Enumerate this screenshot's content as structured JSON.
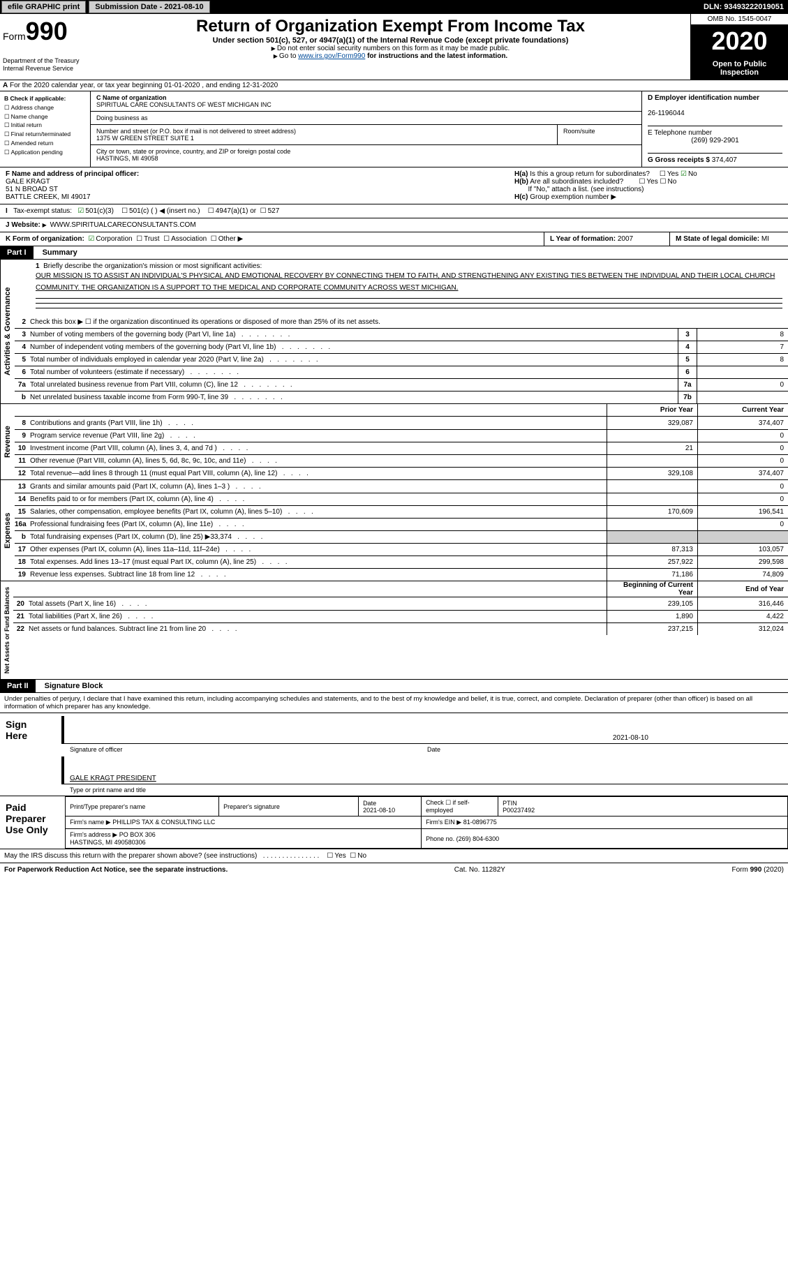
{
  "top": {
    "efile": "efile GRAPHIC print",
    "sub_label": "Submission Date - 2021-08-10",
    "dln": "DLN: 93493222019051"
  },
  "header": {
    "form_prefix": "Form",
    "form_num": "990",
    "title": "Return of Organization Exempt From Income Tax",
    "subtitle": "Under section 501(c), 527, or 4947(a)(1) of the Internal Revenue Code (except private foundations)",
    "note1": "Do not enter social security numbers on this form as it may be made public.",
    "note2_pre": "Go to ",
    "note2_link": "www.irs.gov/Form990",
    "note2_post": " for instructions and the latest information.",
    "dept": "Department of the Treasury\nInternal Revenue Service",
    "omb": "OMB No. 1545-0047",
    "year": "2020",
    "open": "Open to Public Inspection"
  },
  "period": {
    "text": "For the 2020 calendar year, or tax year beginning 01-01-2020   , and ending 12-31-2020",
    "a": "A"
  },
  "checkB": {
    "title": "B Check if applicable:",
    "items": [
      "Address change",
      "Name change",
      "Initial return",
      "Final return/terminated",
      "Amended return",
      "Application pending"
    ]
  },
  "boxC": {
    "label": "C Name of organization",
    "name": "SPIRITUAL CARE CONSULTANTS OF WEST MICHIGAN INC",
    "dba_label": "Doing business as",
    "addr_label": "Number and street (or P.O. box if mail is not delivered to street address)",
    "addr": "1375 W GREEN STREET SUITE 1",
    "room_label": "Room/suite",
    "city_label": "City or town, state or province, country, and ZIP or foreign postal code",
    "city": "HASTINGS, MI  49058"
  },
  "boxD": {
    "label": "D Employer identification number",
    "val": "26-1196044"
  },
  "boxE": {
    "label": "E Telephone number",
    "val": "(269) 929-2901"
  },
  "boxG": {
    "label": "G Gross receipts $",
    "val": "374,407"
  },
  "boxF": {
    "label": "F Name and address of principal officer:",
    "name": "GALE KRAGT",
    "addr1": "51 N BROAD ST",
    "addr2": "BATTLE CREEK, MI  49017"
  },
  "boxH": {
    "a": "Is this a group return for subordinates?",
    "a_yes": "Yes",
    "a_no": "No",
    "b": "Are all subordinates included?",
    "b_note": "If \"No,\" attach a list. (see instructions)",
    "c": "Group exemption number"
  },
  "boxI": {
    "label": "Tax-exempt status:",
    "o1": "501(c)(3)",
    "o2": "501(c) (   ) ◀ (insert no.)",
    "o3": "4947(a)(1) or",
    "o4": "527"
  },
  "boxJ": {
    "label": "J    Website:",
    "val": "WWW.SPIRITUALCARECONSULTANTS.COM"
  },
  "boxK": {
    "label": "K Form of organization:",
    "o1": "Corporation",
    "o2": "Trust",
    "o3": "Association",
    "o4": "Other"
  },
  "boxL": {
    "label": "L Year of formation:",
    "val": "2007"
  },
  "boxM": {
    "label": "M State of legal domicile:",
    "val": "MI"
  },
  "part1": {
    "label": "Part I",
    "title": "Summary",
    "q1": "Briefly describe the organization's mission or most significant activities:",
    "mission": "OUR MISSION IS TO ASSIST AN INDIVIDUAL'S PHYSICAL AND EMOTIONAL RECOVERY BY CONNECTING THEM TO FAITH, AND STRENGTHENING ANY EXISTING TIES BETWEEN THE INDIVIDUAL AND THEIR LOCAL CHURCH COMMUNITY. THE ORGANIZATION IS A SUPPORT TO THE MEDICAL AND CORPORATE COMMUNITY ACROSS WEST MICHIGAN.",
    "q2": "Check this box ▶ ☐  if the organization discontinued its operations or disposed of more than 25% of its net assets.",
    "lines_gov": [
      {
        "n": "3",
        "t": "Number of voting members of the governing body (Part VI, line 1a)",
        "ln": "3",
        "v": "8"
      },
      {
        "n": "4",
        "t": "Number of independent voting members of the governing body (Part VI, line 1b)",
        "ln": "4",
        "v": "7"
      },
      {
        "n": "5",
        "t": "Total number of individuals employed in calendar year 2020 (Part V, line 2a)",
        "ln": "5",
        "v": "8"
      },
      {
        "n": "6",
        "t": "Total number of volunteers (estimate if necessary)",
        "ln": "6",
        "v": ""
      },
      {
        "n": "7a",
        "t": "Total unrelated business revenue from Part VIII, column (C), line 12",
        "ln": "7a",
        "v": "0"
      },
      {
        "n": "b",
        "t": "Net unrelated business taxable income from Form 990-T, line 39",
        "ln": "7b",
        "v": ""
      }
    ],
    "py": "Prior Year",
    "cy": "Current Year",
    "rev": [
      {
        "n": "8",
        "t": "Contributions and grants (Part VIII, line 1h)",
        "p": "329,087",
        "c": "374,407"
      },
      {
        "n": "9",
        "t": "Program service revenue (Part VIII, line 2g)",
        "p": "",
        "c": "0"
      },
      {
        "n": "10",
        "t": "Investment income (Part VIII, column (A), lines 3, 4, and 7d )",
        "p": "21",
        "c": "0"
      },
      {
        "n": "11",
        "t": "Other revenue (Part VIII, column (A), lines 5, 6d, 8c, 9c, 10c, and 11e)",
        "p": "",
        "c": "0"
      },
      {
        "n": "12",
        "t": "Total revenue—add lines 8 through 11 (must equal Part VIII, column (A), line 12)",
        "p": "329,108",
        "c": "374,407"
      }
    ],
    "exp": [
      {
        "n": "13",
        "t": "Grants and similar amounts paid (Part IX, column (A), lines 1–3 )",
        "p": "",
        "c": "0"
      },
      {
        "n": "14",
        "t": "Benefits paid to or for members (Part IX, column (A), line 4)",
        "p": "",
        "c": "0"
      },
      {
        "n": "15",
        "t": "Salaries, other compensation, employee benefits (Part IX, column (A), lines 5–10)",
        "p": "170,609",
        "c": "196,541"
      },
      {
        "n": "16a",
        "t": "Professional fundraising fees (Part IX, column (A), line 11e)",
        "p": "",
        "c": "0"
      },
      {
        "n": "b",
        "t": "Total fundraising expenses (Part IX, column (D), line 25) ▶33,374",
        "p": "GREY",
        "c": "GREY"
      },
      {
        "n": "17",
        "t": "Other expenses (Part IX, column (A), lines 11a–11d, 11f–24e)",
        "p": "87,313",
        "c": "103,057"
      },
      {
        "n": "18",
        "t": "Total expenses. Add lines 13–17 (must equal Part IX, column (A), line 25)",
        "p": "257,922",
        "c": "299,598"
      },
      {
        "n": "19",
        "t": "Revenue less expenses. Subtract line 18 from line 12",
        "p": "71,186",
        "c": "74,809"
      }
    ],
    "boy": "Beginning of Current Year",
    "eoy": "End of Year",
    "bal": [
      {
        "n": "20",
        "t": "Total assets (Part X, line 16)",
        "p": "239,105",
        "c": "316,446"
      },
      {
        "n": "21",
        "t": "Total liabilities (Part X, line 26)",
        "p": "1,890",
        "c": "4,422"
      },
      {
        "n": "22",
        "t": "Net assets or fund balances. Subtract line 21 from line 20",
        "p": "237,215",
        "c": "312,024"
      }
    ],
    "vert1": "Activities & Governance",
    "vert2": "Revenue",
    "vert3": "Expenses",
    "vert4": "Net Assets or Fund Balances"
  },
  "part2": {
    "label": "Part II",
    "title": "Signature Block",
    "pen": "Under penalties of perjury, I declare that I have examined this return, including accompanying schedules and statements, and to the best of my knowledge and belief, it is true, correct, and complete. Declaration of preparer (other than officer) is based on all information of which preparer has any knowledge.",
    "sign_here": "Sign Here",
    "sig_off": "Signature of officer",
    "date": "Date",
    "sig_date": "2021-08-10",
    "off_name": "GALE KRAGT PRESIDENT",
    "off_label": "Type or print name and title",
    "paid_label": "Paid Preparer Use Only",
    "pp_name_label": "Print/Type preparer's name",
    "pp_sig_label": "Preparer's signature",
    "pp_date_label": "Date",
    "pp_date": "2021-08-10",
    "pp_check": "Check ☐ if self-employed",
    "ptin_label": "PTIN",
    "ptin": "P00237492",
    "firm_name_label": "Firm's name    ▶",
    "firm_name": "PHILLIPS TAX & CONSULTING LLC",
    "firm_ein_label": "Firm's EIN ▶",
    "firm_ein": "81-0896775",
    "firm_addr_label": "Firm's address ▶",
    "firm_addr": "PO BOX 306\nHASTINGS, MI  490580306",
    "phone_label": "Phone no.",
    "phone": "(269) 804-6300",
    "discuss": "May the IRS discuss this return with the preparer shown above? (see instructions)",
    "d_yes": "Yes",
    "d_no": "No"
  },
  "footer": {
    "pra": "For Paperwork Reduction Act Notice, see the separate instructions.",
    "cat": "Cat. No. 11282Y",
    "form": "Form 990 (2020)"
  }
}
